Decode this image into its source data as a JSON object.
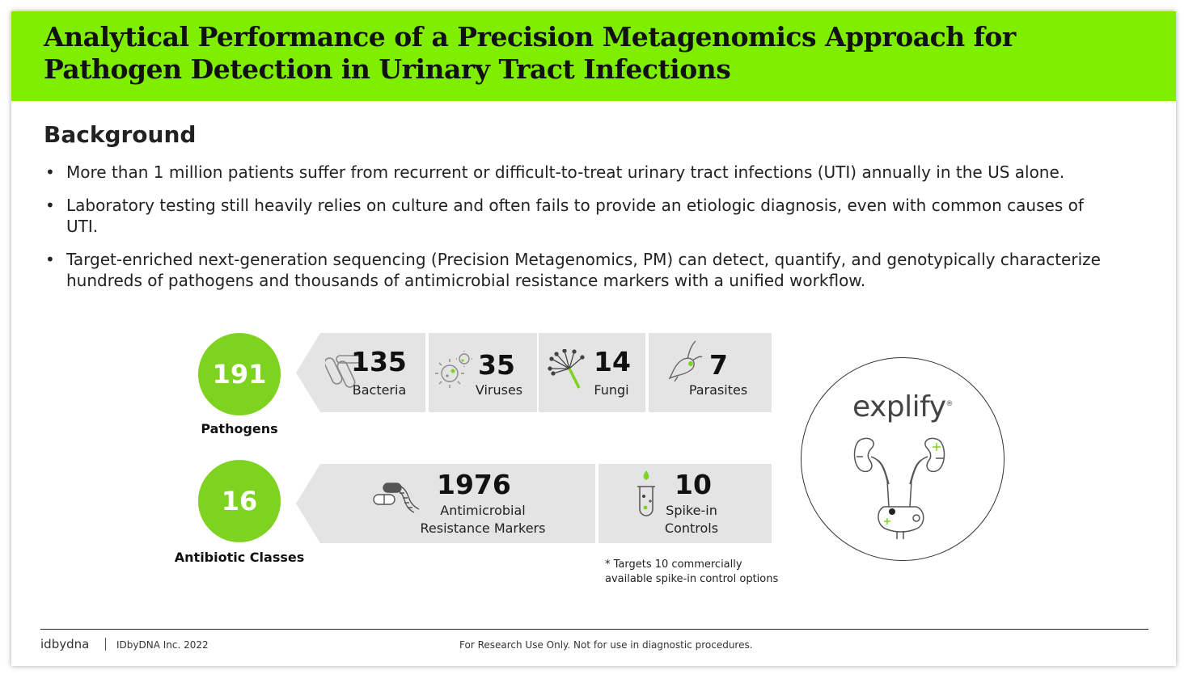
{
  "title": "Analytical Performance of a Precision Metagenomics Approach for Pathogen Detection in Urinary Tract Infections",
  "background": {
    "heading": "Background",
    "bullets": [
      "More than 1 million patients suffer from recurrent or difficult-to-treat urinary tract infections (UTI) annually in the US alone.",
      "Laboratory testing still heavily relies on culture and often fails to provide an etiologic diagnosis, even with common causes of UTI.",
      "Target-enriched next-generation sequencing (Precision Metagenomics, PM) can detect, quantify, and genotypically characterize hundreds of pathogens and thousands of antimicrobial resistance markers with a unified workflow."
    ]
  },
  "pathogens": {
    "total": "191",
    "label": "Pathogens",
    "items": [
      {
        "count": "135",
        "label": "Bacteria",
        "icon": "bacteria-icon"
      },
      {
        "count": "35",
        "label": "Viruses",
        "icon": "virus-icon"
      },
      {
        "count": "14",
        "label": "Fungi",
        "icon": "fungi-icon"
      },
      {
        "count": "7",
        "label": "Parasites",
        "icon": "parasite-icon"
      }
    ]
  },
  "antibiotics": {
    "total": "16",
    "label": "Antibiotic Classes",
    "amr": {
      "count": "1976",
      "label_line1": "Antimicrobial",
      "label_line2": "Resistance Markers",
      "icon": "pill-dna-icon"
    },
    "spike": {
      "count": "10",
      "label_line1": "Spike-in",
      "label_line2": "Controls",
      "icon": "test-tube-icon"
    }
  },
  "note": {
    "line1": "* Targets 10 commercially",
    "line2": "available spike-in control options"
  },
  "explify": {
    "logo": "explify",
    "trademark": "®",
    "icon": "urinary-tract-icon"
  },
  "footer": {
    "brand": "idbydna",
    "copyright": "IDbyDNA Inc. 2022",
    "disclaimer": "For Research Use Only. Not for use in diagnostic procedures."
  },
  "colors": {
    "accent": "#80ee00",
    "circle": "#7ed321",
    "card": "#e4e4e4"
  }
}
